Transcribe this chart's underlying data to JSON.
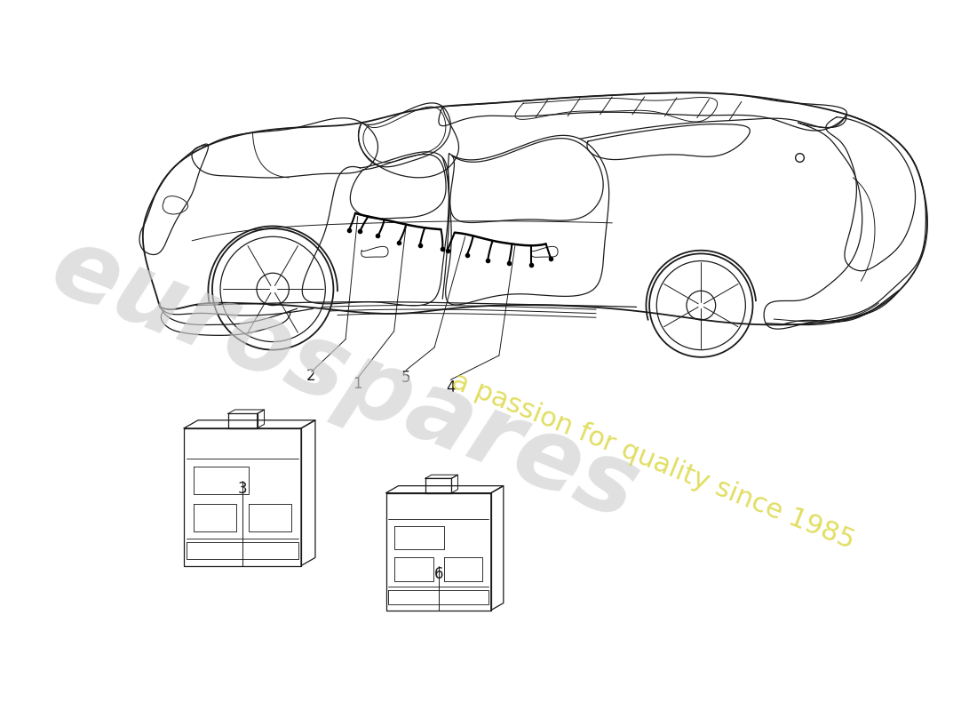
{
  "background_color": "#ffffff",
  "line_color": "#1a1a1a",
  "watermark_color": "#d0d0d0",
  "watermark_yellow": "#d4d020",
  "watermark_text1": "eurospares",
  "watermark_text2": "a passion for quality since 1985",
  "label_numbers": [
    "1",
    "2",
    "3",
    "4",
    "5",
    "6"
  ],
  "figsize": [
    11.0,
    8.0
  ],
  "dpi": 100
}
